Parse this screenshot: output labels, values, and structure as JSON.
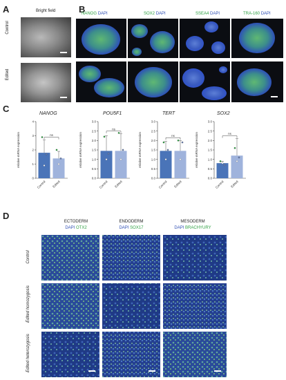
{
  "panels": {
    "A": "A",
    "B": "B",
    "C": "C",
    "D": "D"
  },
  "panelA": {
    "header": "Bright field",
    "rows": [
      "Control",
      "Edited"
    ]
  },
  "panelB": {
    "markers": [
      {
        "marker": "NANOG",
        "stain": "DAPI"
      },
      {
        "marker": "SOX2",
        "stain": "DAPI"
      },
      {
        "marker": "SSEA4",
        "stain": "DAPI"
      },
      {
        "marker": "TRA-160",
        "stain": "DAPI"
      }
    ]
  },
  "panelD": {
    "layers": [
      {
        "name": "ECTODERM",
        "stain": "DAPI",
        "marker": "OTX2"
      },
      {
        "name": "ENDODERM",
        "stain": "DAPI",
        "marker": "SOX17"
      },
      {
        "name": "MESODERM",
        "stain": "DAPI",
        "marker": "BRACHYURY"
      }
    ],
    "rows": [
      "Control",
      "Edited homozygosis",
      "Edited heterozygosis"
    ]
  },
  "colors": {
    "control": "#4a74b8",
    "edited": "#9fb3dc",
    "marker_green": "#2ea043",
    "dapi_blue": "#2f4fb4"
  },
  "chart_data": [
    {
      "type": "bar",
      "title": "NANOG",
      "ylabel": "relative mRNA expression",
      "categories": [
        "Control",
        "Edited"
      ],
      "values": [
        1.8,
        1.4
      ],
      "errors": [
        0.9,
        0.5
      ],
      "ylim": [
        0,
        4
      ],
      "yticks": [
        0,
        1,
        2,
        3,
        4
      ],
      "annotation": "ns",
      "points": [
        [
          2.9,
          0.9,
          1.7
        ],
        [
          2.0,
          1.0,
          1.4
        ]
      ]
    },
    {
      "type": "bar",
      "title": "POU5F1",
      "ylabel": "relative mRNA expression",
      "categories": [
        "Control",
        "Edited"
      ],
      "values": [
        1.45,
        1.45
      ],
      "errors": [
        0.8,
        0.9
      ],
      "ylim": [
        0,
        3
      ],
      "yticks": [
        0.0,
        0.5,
        1.0,
        1.5,
        2.0,
        2.5,
        3.0
      ],
      "annotation": "ns",
      "points": [
        [
          2.2,
          1.0,
          1.3
        ],
        [
          2.4,
          1.0,
          1.5
        ]
      ]
    },
    {
      "type": "bar",
      "title": "TERT",
      "ylabel": "relative mRNA expression",
      "categories": [
        "Control",
        "Edited"
      ],
      "values": [
        1.45,
        1.45
      ],
      "errors": [
        0.5,
        0.55
      ],
      "ylim": [
        0,
        3
      ],
      "yticks": [
        0.0,
        0.5,
        1.0,
        1.5,
        2.0,
        2.5,
        3.0
      ],
      "annotation": "ns",
      "points": [
        [
          1.9,
          1.0,
          1.5
        ],
        [
          2.0,
          1.0,
          1.9
        ]
      ]
    },
    {
      "type": "bar",
      "title": "SOX2",
      "ylabel": "relative mRNA expression",
      "categories": [
        "Control",
        "Edited"
      ],
      "values": [
        0.8,
        1.2
      ],
      "errors": [
        0.1,
        0.9
      ],
      "ylim": [
        0,
        3
      ],
      "yticks": [
        0.0,
        0.5,
        1.0,
        1.5,
        2.0,
        2.5,
        3.0
      ],
      "annotation": "ns",
      "points": [
        [
          0.9,
          0.8,
          0.7
        ],
        [
          1.6,
          0.9,
          1.1
        ]
      ]
    }
  ]
}
